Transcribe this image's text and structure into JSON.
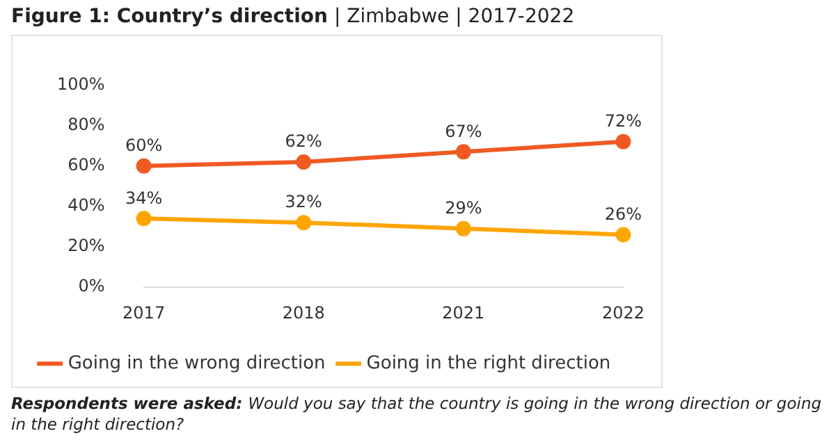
{
  "chart_data": {
    "type": "line",
    "title": "Figure 1: Country’s direction",
    "subtitle": "| Zimbabwe | 2017-2022",
    "categories": [
      "2017",
      "2018",
      "2021",
      "2022"
    ],
    "series": [
      {
        "name": "Going in the wrong direction",
        "color": "#f05a22",
        "values": [
          60,
          62,
          67,
          72
        ],
        "value_labels": [
          "60%",
          "62%",
          "67%",
          "72%"
        ]
      },
      {
        "name": "Going in the right direction",
        "color": "#ffa500",
        "values": [
          34,
          32,
          29,
          26
        ],
        "value_labels": [
          "34%",
          "32%",
          "29%",
          "26%"
        ]
      }
    ],
    "ylim": [
      0,
      100
    ],
    "yticks": [
      {
        "value": 0,
        "label": "0%"
      },
      {
        "value": 20,
        "label": "20%"
      },
      {
        "value": 40,
        "label": "40%"
      },
      {
        "value": 60,
        "label": "60%"
      },
      {
        "value": 80,
        "label": "80%"
      },
      {
        "value": 100,
        "label": "100%"
      }
    ],
    "grid": false,
    "legend": "bottom",
    "marker": "circle",
    "line_style": "solid",
    "annotations": [
      "Respondents were asked:",
      "Would you say that the country is going in the wrong direction or going in the right direction?"
    ]
  }
}
